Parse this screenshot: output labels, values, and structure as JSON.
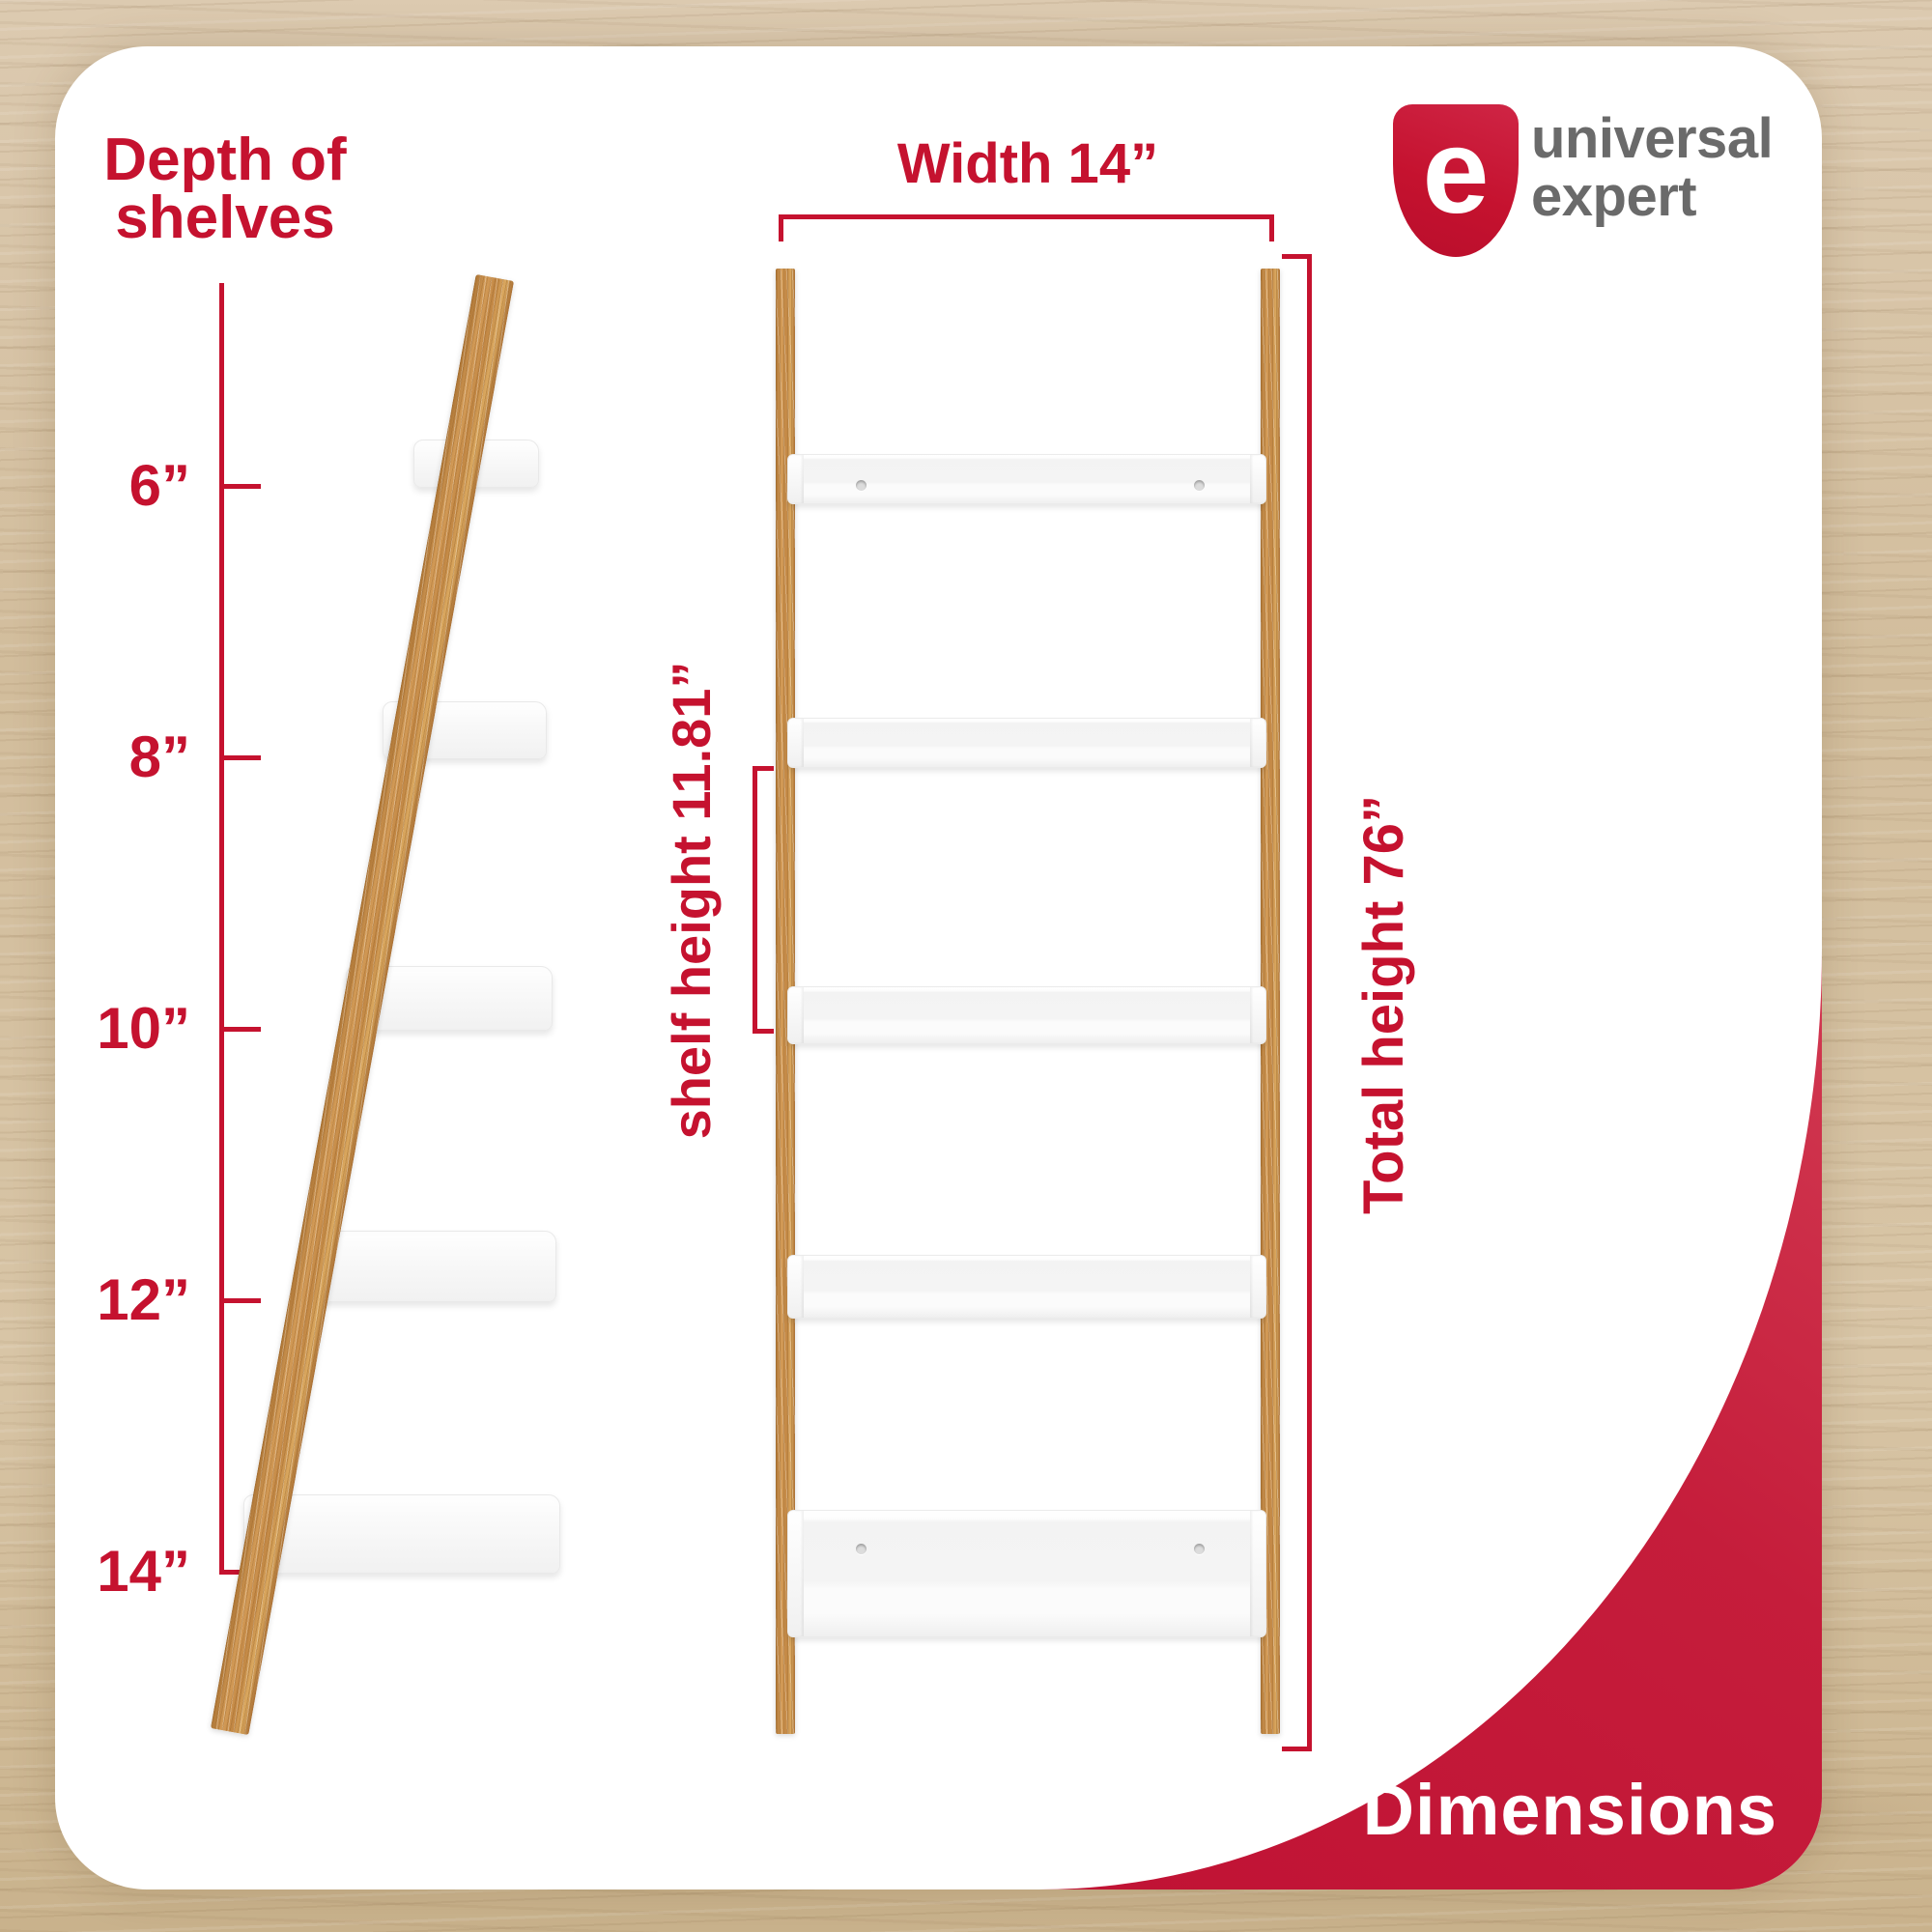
{
  "brand": {
    "monogram": "e",
    "name_line1": "universal",
    "name_line2": "expert"
  },
  "heading": {
    "line1": "Depth of",
    "line2": "shelves"
  },
  "depth_scale": {
    "ticks": [
      "6”",
      "8”",
      "10”",
      "12”",
      "14”"
    ]
  },
  "dimensions": {
    "width_label": "Width 14”",
    "shelf_height_label": "shelf height 11.81”",
    "total_height_label": "Total height 76”"
  },
  "badge": {
    "label": "Dimensions"
  },
  "colors": {
    "accent_red": "#c5122f",
    "corner_red": "#c51d3b",
    "wordmark_gray": "#6a6a6a",
    "wood_background": "#d5c1a1",
    "rail_wood": "#c98f4d",
    "shelf_white": "#ffffff"
  }
}
